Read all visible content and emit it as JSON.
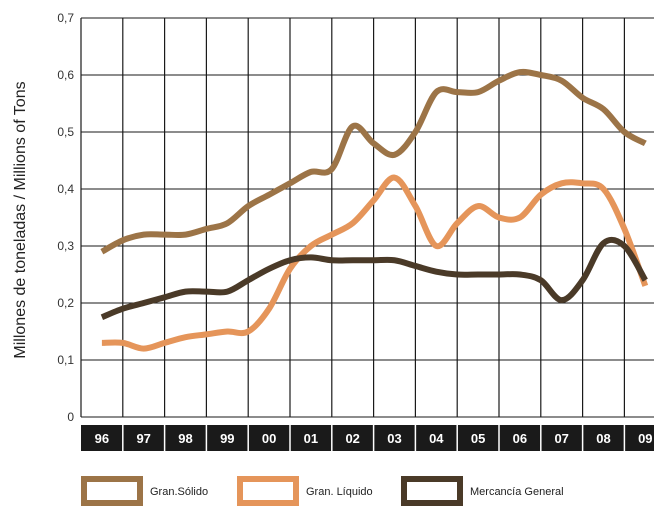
{
  "chart_data": {
    "type": "line",
    "title": "",
    "xlabel": "",
    "ylabel": "Millones de toneladas / Millions of Tons",
    "categories": [
      "96",
      "97",
      "98",
      "99",
      "00",
      "01",
      "02",
      "03",
      "04",
      "05",
      "06",
      "07",
      "08",
      "09"
    ],
    "ylim": [
      0,
      0.7
    ],
    "yticks": [
      "0",
      "0,1",
      "0,2",
      "0,3",
      "0,4",
      "0,5",
      "0,6",
      "0,7"
    ],
    "grid": true,
    "legend_position": "bottom",
    "series": [
      {
        "name": "Gran.Sólido",
        "color": "#9C7447",
        "x": [
          96,
          96.5,
          97,
          97.5,
          98,
          98.5,
          99,
          99.5,
          100,
          100.5,
          101,
          101.5,
          102,
          102.5,
          103,
          103.5,
          104,
          104.5,
          105,
          105.5,
          106,
          106.5,
          107,
          107.5,
          108,
          108.5,
          109
        ],
        "values": [
          0.29,
          0.31,
          0.32,
          0.32,
          0.32,
          0.33,
          0.34,
          0.37,
          0.39,
          0.41,
          0.43,
          0.435,
          0.51,
          0.48,
          0.46,
          0.5,
          0.57,
          0.57,
          0.57,
          0.59,
          0.605,
          0.6,
          0.59,
          0.56,
          0.54,
          0.5,
          0.48
        ]
      },
      {
        "name": "Gran. Líquido",
        "color": "#E5955A",
        "x": [
          96,
          96.5,
          97,
          97.5,
          98,
          98.5,
          99,
          99.5,
          100,
          100.5,
          101,
          101.5,
          102,
          102.5,
          103,
          103.5,
          104,
          104.5,
          105,
          105.5,
          106,
          106.5,
          107,
          107.5,
          108,
          108.5,
          109
        ],
        "values": [
          0.13,
          0.13,
          0.12,
          0.13,
          0.14,
          0.145,
          0.15,
          0.15,
          0.19,
          0.26,
          0.3,
          0.32,
          0.34,
          0.38,
          0.42,
          0.37,
          0.3,
          0.34,
          0.37,
          0.35,
          0.35,
          0.39,
          0.41,
          0.41,
          0.4,
          0.33,
          0.23
        ]
      },
      {
        "name": "Mercancía General",
        "color": "#4A3A28",
        "x": [
          96,
          96.5,
          97,
          97.5,
          98,
          98.5,
          99,
          99.5,
          100,
          100.5,
          101,
          101.5,
          102,
          102.5,
          103,
          103.5,
          104,
          104.5,
          105,
          105.5,
          106,
          106.5,
          107,
          107.5,
          108,
          108.5,
          109
        ],
        "values": [
          0.175,
          0.19,
          0.2,
          0.21,
          0.22,
          0.22,
          0.22,
          0.24,
          0.26,
          0.275,
          0.28,
          0.275,
          0.275,
          0.275,
          0.275,
          0.265,
          0.255,
          0.25,
          0.25,
          0.25,
          0.25,
          0.24,
          0.205,
          0.24,
          0.305,
          0.3,
          0.24
        ]
      }
    ]
  }
}
